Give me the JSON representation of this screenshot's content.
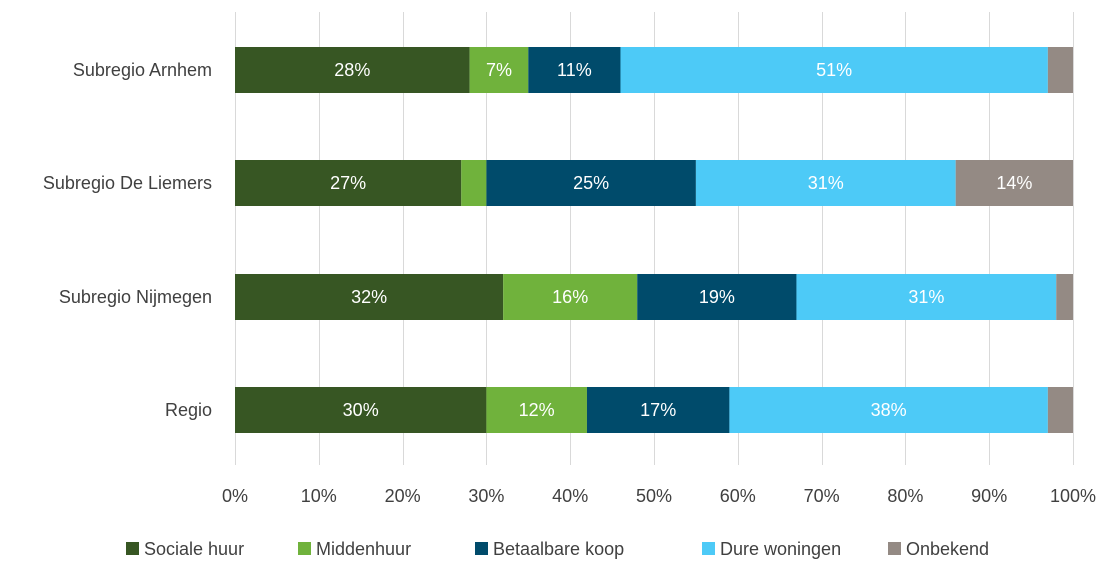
{
  "chart_data": {
    "type": "bar",
    "orientation": "horizontal",
    "stacked": true,
    "categories": [
      "Subregio Arnhem",
      "Subregio De Liemers",
      "Subregio Nijmegen",
      "Regio"
    ],
    "series": [
      {
        "name": "Sociale huur",
        "color": "#375623",
        "label_color": "#ffffff",
        "values": [
          28,
          27,
          32,
          30
        ],
        "labels": [
          "28%",
          "27%",
          "32%",
          "30%"
        ]
      },
      {
        "name": "Middenhuur",
        "color": "#70b23c",
        "label_color": "#ffffff",
        "values": [
          7,
          3,
          16,
          12
        ],
        "labels": [
          "7%",
          "",
          "16%",
          "12%"
        ]
      },
      {
        "name": "Betaalbare koop",
        "color": "#004b6b",
        "label_color": "#ffffff",
        "values": [
          11,
          25,
          19,
          17
        ],
        "labels": [
          "11%",
          "25%",
          "19%",
          "17%"
        ]
      },
      {
        "name": "Dure woningen",
        "color": "#4dcaf7",
        "label_color": "#ffffff",
        "values": [
          51,
          31,
          31,
          38
        ],
        "labels": [
          "51%",
          "31%",
          "31%",
          "38%"
        ]
      },
      {
        "name": "Onbekend",
        "color": "#948a84",
        "label_color": "#ffffff",
        "values": [
          3,
          14,
          2,
          3
        ],
        "labels": [
          "",
          "14%",
          "",
          ""
        ]
      }
    ],
    "x_ticks": [
      "0%",
      "10%",
      "20%",
      "30%",
      "40%",
      "50%",
      "60%",
      "70%",
      "80%",
      "90%",
      "100%"
    ],
    "xlim": [
      0,
      100
    ],
    "grid": "vertical",
    "legend_position": "bottom"
  }
}
